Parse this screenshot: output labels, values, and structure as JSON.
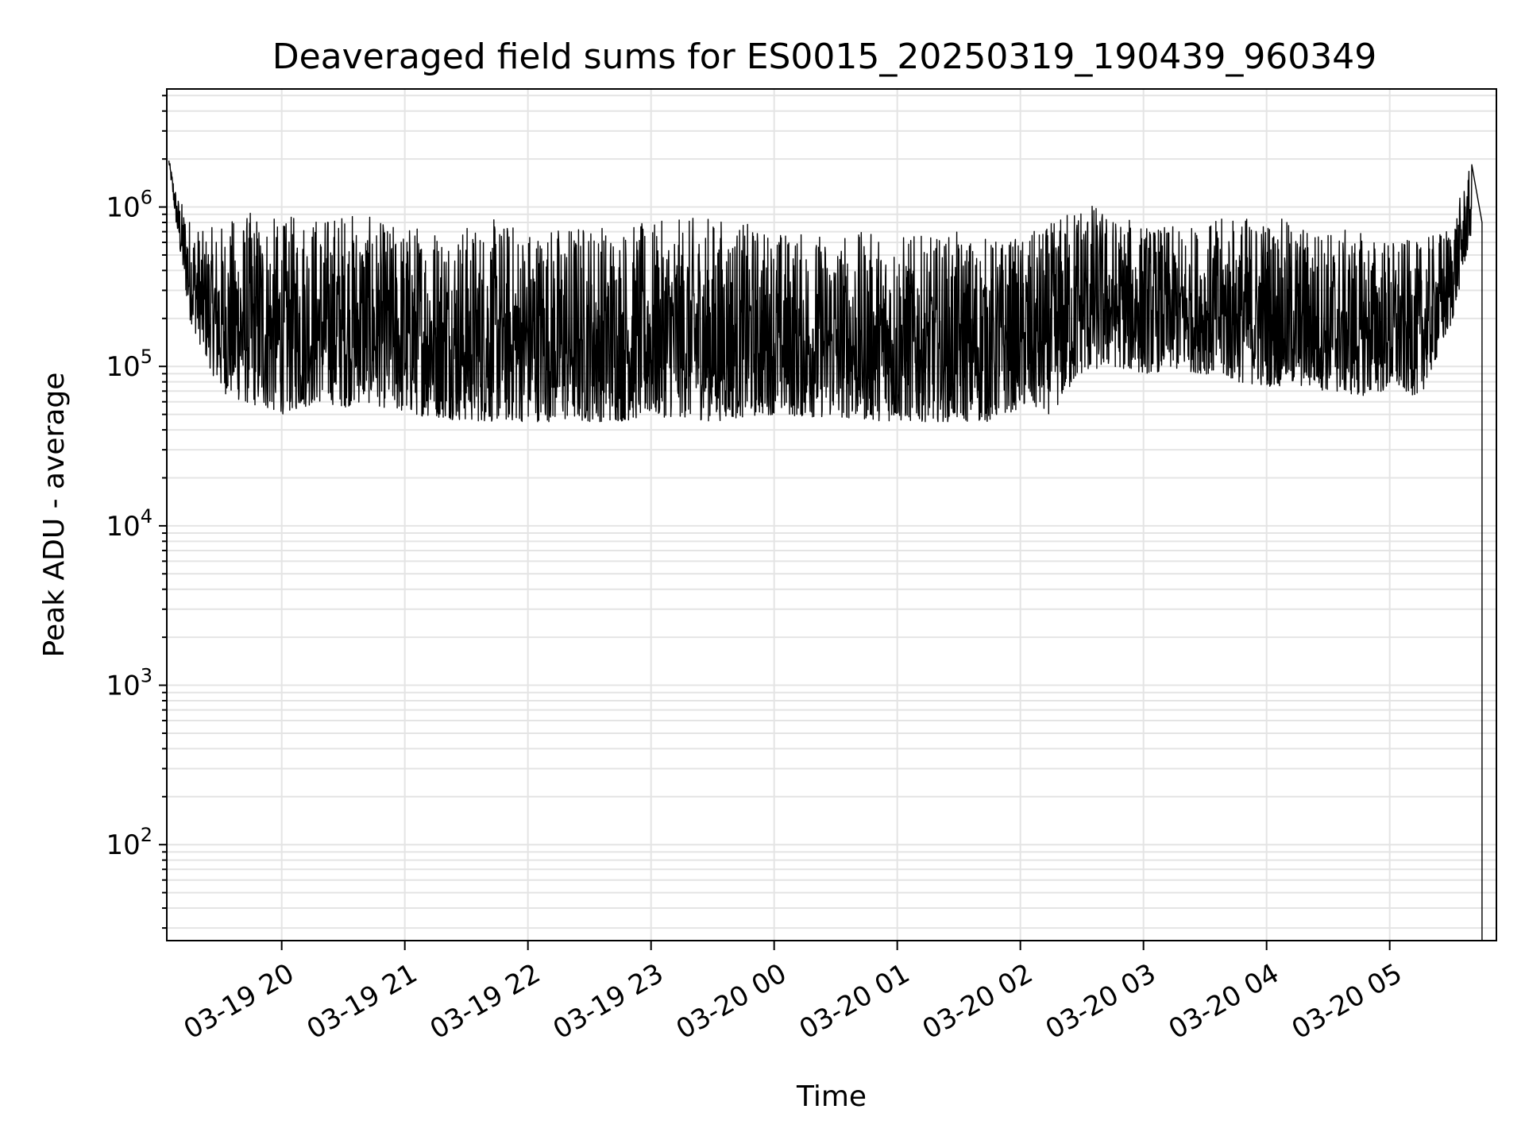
{
  "chart_data": {
    "type": "line",
    "title": "Deaveraged field sums for ES0015_20250319_190439_960349",
    "xlabel": "Time",
    "ylabel": "Peak ADU - average",
    "y_scale": "log",
    "ylim": [
      25,
      5500000
    ],
    "xlim": [
      "2025-03-19 19:04",
      "2025-03-20 05:52"
    ],
    "grid": true,
    "legend": "none",
    "line_color": "#000000",
    "y_ticks": [
      {
        "base": "10",
        "exp": "2",
        "value": 100
      },
      {
        "base": "10",
        "exp": "3",
        "value": 1000
      },
      {
        "base": "10",
        "exp": "4",
        "value": 10000
      },
      {
        "base": "10",
        "exp": "5",
        "value": 100000
      },
      {
        "base": "10",
        "exp": "6",
        "value": 1000000
      }
    ],
    "x_ticks": [
      {
        "label": "03-19 20",
        "value": "2025-03-19 20:00"
      },
      {
        "label": "03-19 21",
        "value": "2025-03-19 21:00"
      },
      {
        "label": "03-19 22",
        "value": "2025-03-19 22:00"
      },
      {
        "label": "03-19 23",
        "value": "2025-03-19 23:00"
      },
      {
        "label": "03-20 00",
        "value": "2025-03-20 00:00"
      },
      {
        "label": "03-20 01",
        "value": "2025-03-20 01:00"
      },
      {
        "label": "03-20 02",
        "value": "2025-03-20 02:00"
      },
      {
        "label": "03-20 03",
        "value": "2025-03-20 03:00"
      },
      {
        "label": "03-20 04",
        "value": "2025-03-20 04:00"
      },
      {
        "label": "03-20 05",
        "value": "2025-03-20 05:00"
      }
    ],
    "series": [
      {
        "x": [
          "2025-03-19 19:05",
          "2025-03-19 19:09",
          "2025-03-19 19:15",
          "2025-03-19 19:22",
          "2025-03-19 19:30",
          "2025-03-19 19:40",
          "2025-03-19 19:50",
          "2025-03-19 20:00",
          "2025-03-19 20:10",
          "2025-03-19 20:20",
          "2025-03-19 20:30",
          "2025-03-19 20:40",
          "2025-03-19 20:50",
          "2025-03-19 21:00",
          "2025-03-19 21:15",
          "2025-03-19 21:30",
          "2025-03-19 21:45",
          "2025-03-19 22:00",
          "2025-03-19 22:15",
          "2025-03-19 22:30",
          "2025-03-19 22:45",
          "2025-03-19 23:00",
          "2025-03-19 23:15",
          "2025-03-19 23:30",
          "2025-03-19 23:45",
          "2025-03-20 00:00",
          "2025-03-20 00:15",
          "2025-03-20 00:30",
          "2025-03-20 00:45",
          "2025-03-20 01:00",
          "2025-03-20 01:15",
          "2025-03-20 01:30",
          "2025-03-20 01:45",
          "2025-03-20 02:00",
          "2025-03-20 02:15",
          "2025-03-20 02:30",
          "2025-03-20 02:45",
          "2025-03-20 03:00",
          "2025-03-20 03:15",
          "2025-03-20 03:30",
          "2025-03-20 03:45",
          "2025-03-20 04:00",
          "2025-03-20 04:15",
          "2025-03-20 04:30",
          "2025-03-20 04:45",
          "2025-03-20 05:00",
          "2025-03-20 05:15",
          "2025-03-20 05:30",
          "2025-03-20 05:40",
          "2025-03-20 05:45"
        ],
        "low": [
          1900000,
          700000,
          200000,
          120000,
          70000,
          60000,
          55000,
          50000,
          55000,
          60000,
          55000,
          60000,
          55000,
          50000,
          48000,
          45000,
          45000,
          45000,
          45000,
          45000,
          45000,
          48000,
          48000,
          45000,
          48000,
          50000,
          48000,
          48000,
          46000,
          45000,
          45000,
          45000,
          45000,
          55000,
          50000,
          90000,
          100000,
          90000,
          95000,
          90000,
          80000,
          75000,
          75000,
          70000,
          65000,
          70000,
          65000,
          180000,
          700000,
          30
        ],
        "high": [
          2000000,
          1200000,
          900000,
          700000,
          800000,
          900000,
          1000000,
          800000,
          1000000,
          900000,
          1000000,
          900000,
          800000,
          800000,
          850000,
          800000,
          850000,
          800000,
          800000,
          850000,
          800000,
          800000,
          850000,
          900000,
          800000,
          750000,
          700000,
          700000,
          700000,
          700000,
          650000,
          700000,
          650000,
          650000,
          800000,
          1200000,
          900000,
          800000,
          750000,
          800000,
          900000,
          900000,
          800000,
          750000,
          700000,
          650000,
          600000,
          800000,
          1900000,
          800000
        ]
      }
    ]
  }
}
